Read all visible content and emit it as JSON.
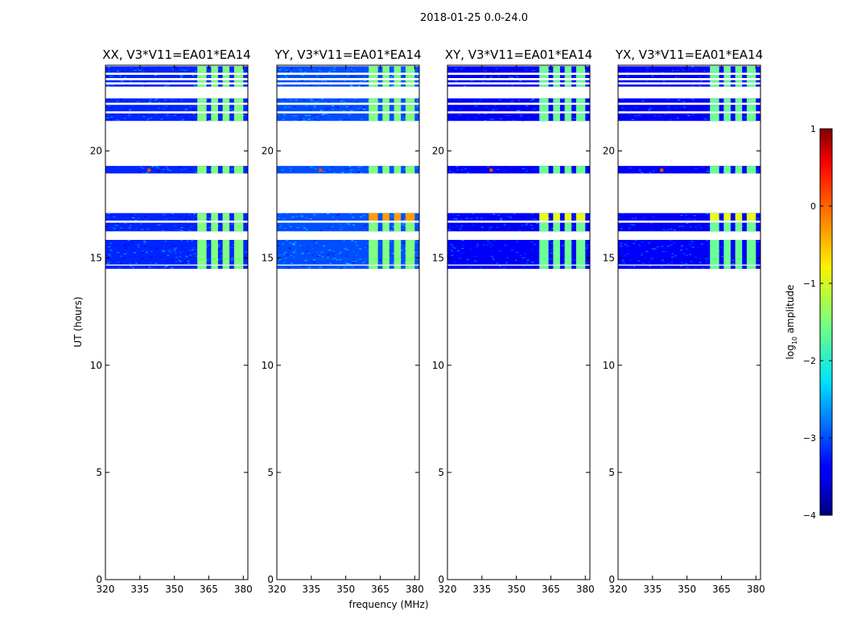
{
  "figure_title": "2018-01-25 0.0-24.0",
  "chart_data": {
    "type": "heatmap",
    "date": "2018-01-25",
    "time_range_hours": [
      0.0,
      24.0
    ],
    "xlabel": "frequency (MHz)",
    "ylabel": "UT (hours)",
    "xlim": [
      320,
      382
    ],
    "ylim": [
      0,
      24
    ],
    "xticks": [
      320,
      335,
      350,
      365,
      380
    ],
    "yticks": [
      0,
      5,
      10,
      15,
      20
    ],
    "colorbar": {
      "label": "log10 amplitude",
      "label_main": "log",
      "label_sub": "10",
      "label_rest": " amplitude",
      "range": [
        -4,
        1
      ],
      "ticks": [
        1,
        0,
        -1,
        -2,
        -3,
        -4
      ],
      "tick_labels": [
        "1",
        "0",
        "−1",
        "−2",
        "−3",
        "−4"
      ],
      "colormap": "jet"
    },
    "data_time_blocks_hours": [
      [
        14.5,
        14.65
      ],
      [
        14.7,
        15.85
      ],
      [
        16.25,
        16.65
      ],
      [
        16.75,
        17.1
      ],
      [
        18.95,
        19.3
      ],
      [
        21.4,
        21.75
      ],
      [
        21.85,
        22.15
      ],
      [
        22.25,
        22.45
      ],
      [
        23.0,
        23.1
      ],
      [
        23.2,
        23.3
      ],
      [
        23.4,
        23.55
      ],
      [
        23.65,
        23.95
      ]
    ],
    "rfi_frequency_bands_mhz": [
      [
        360,
        364
      ],
      [
        366,
        369
      ],
      [
        371,
        374
      ],
      [
        376,
        380
      ]
    ],
    "hot_spot": {
      "freq_mhz": 339,
      "ut_hours": 19.1
    },
    "panels": [
      {
        "title": "XX, V3*V11=EA01*EA14",
        "base_log": -3.2,
        "rfi_log": -1.5,
        "hot_band_log": null
      },
      {
        "title": "YY, V3*V11=EA01*EA14",
        "base_log": -3.0,
        "rfi_log": -1.5,
        "hot_band_log": -0.4
      },
      {
        "title": "XY, V3*V11=EA01*EA14",
        "base_log": -3.4,
        "rfi_log": -1.6,
        "hot_band_log": -1.0
      },
      {
        "title": "YX, V3*V11=EA01*EA14",
        "base_log": -3.4,
        "rfi_log": -1.6,
        "hot_band_log": -1.0
      }
    ]
  }
}
